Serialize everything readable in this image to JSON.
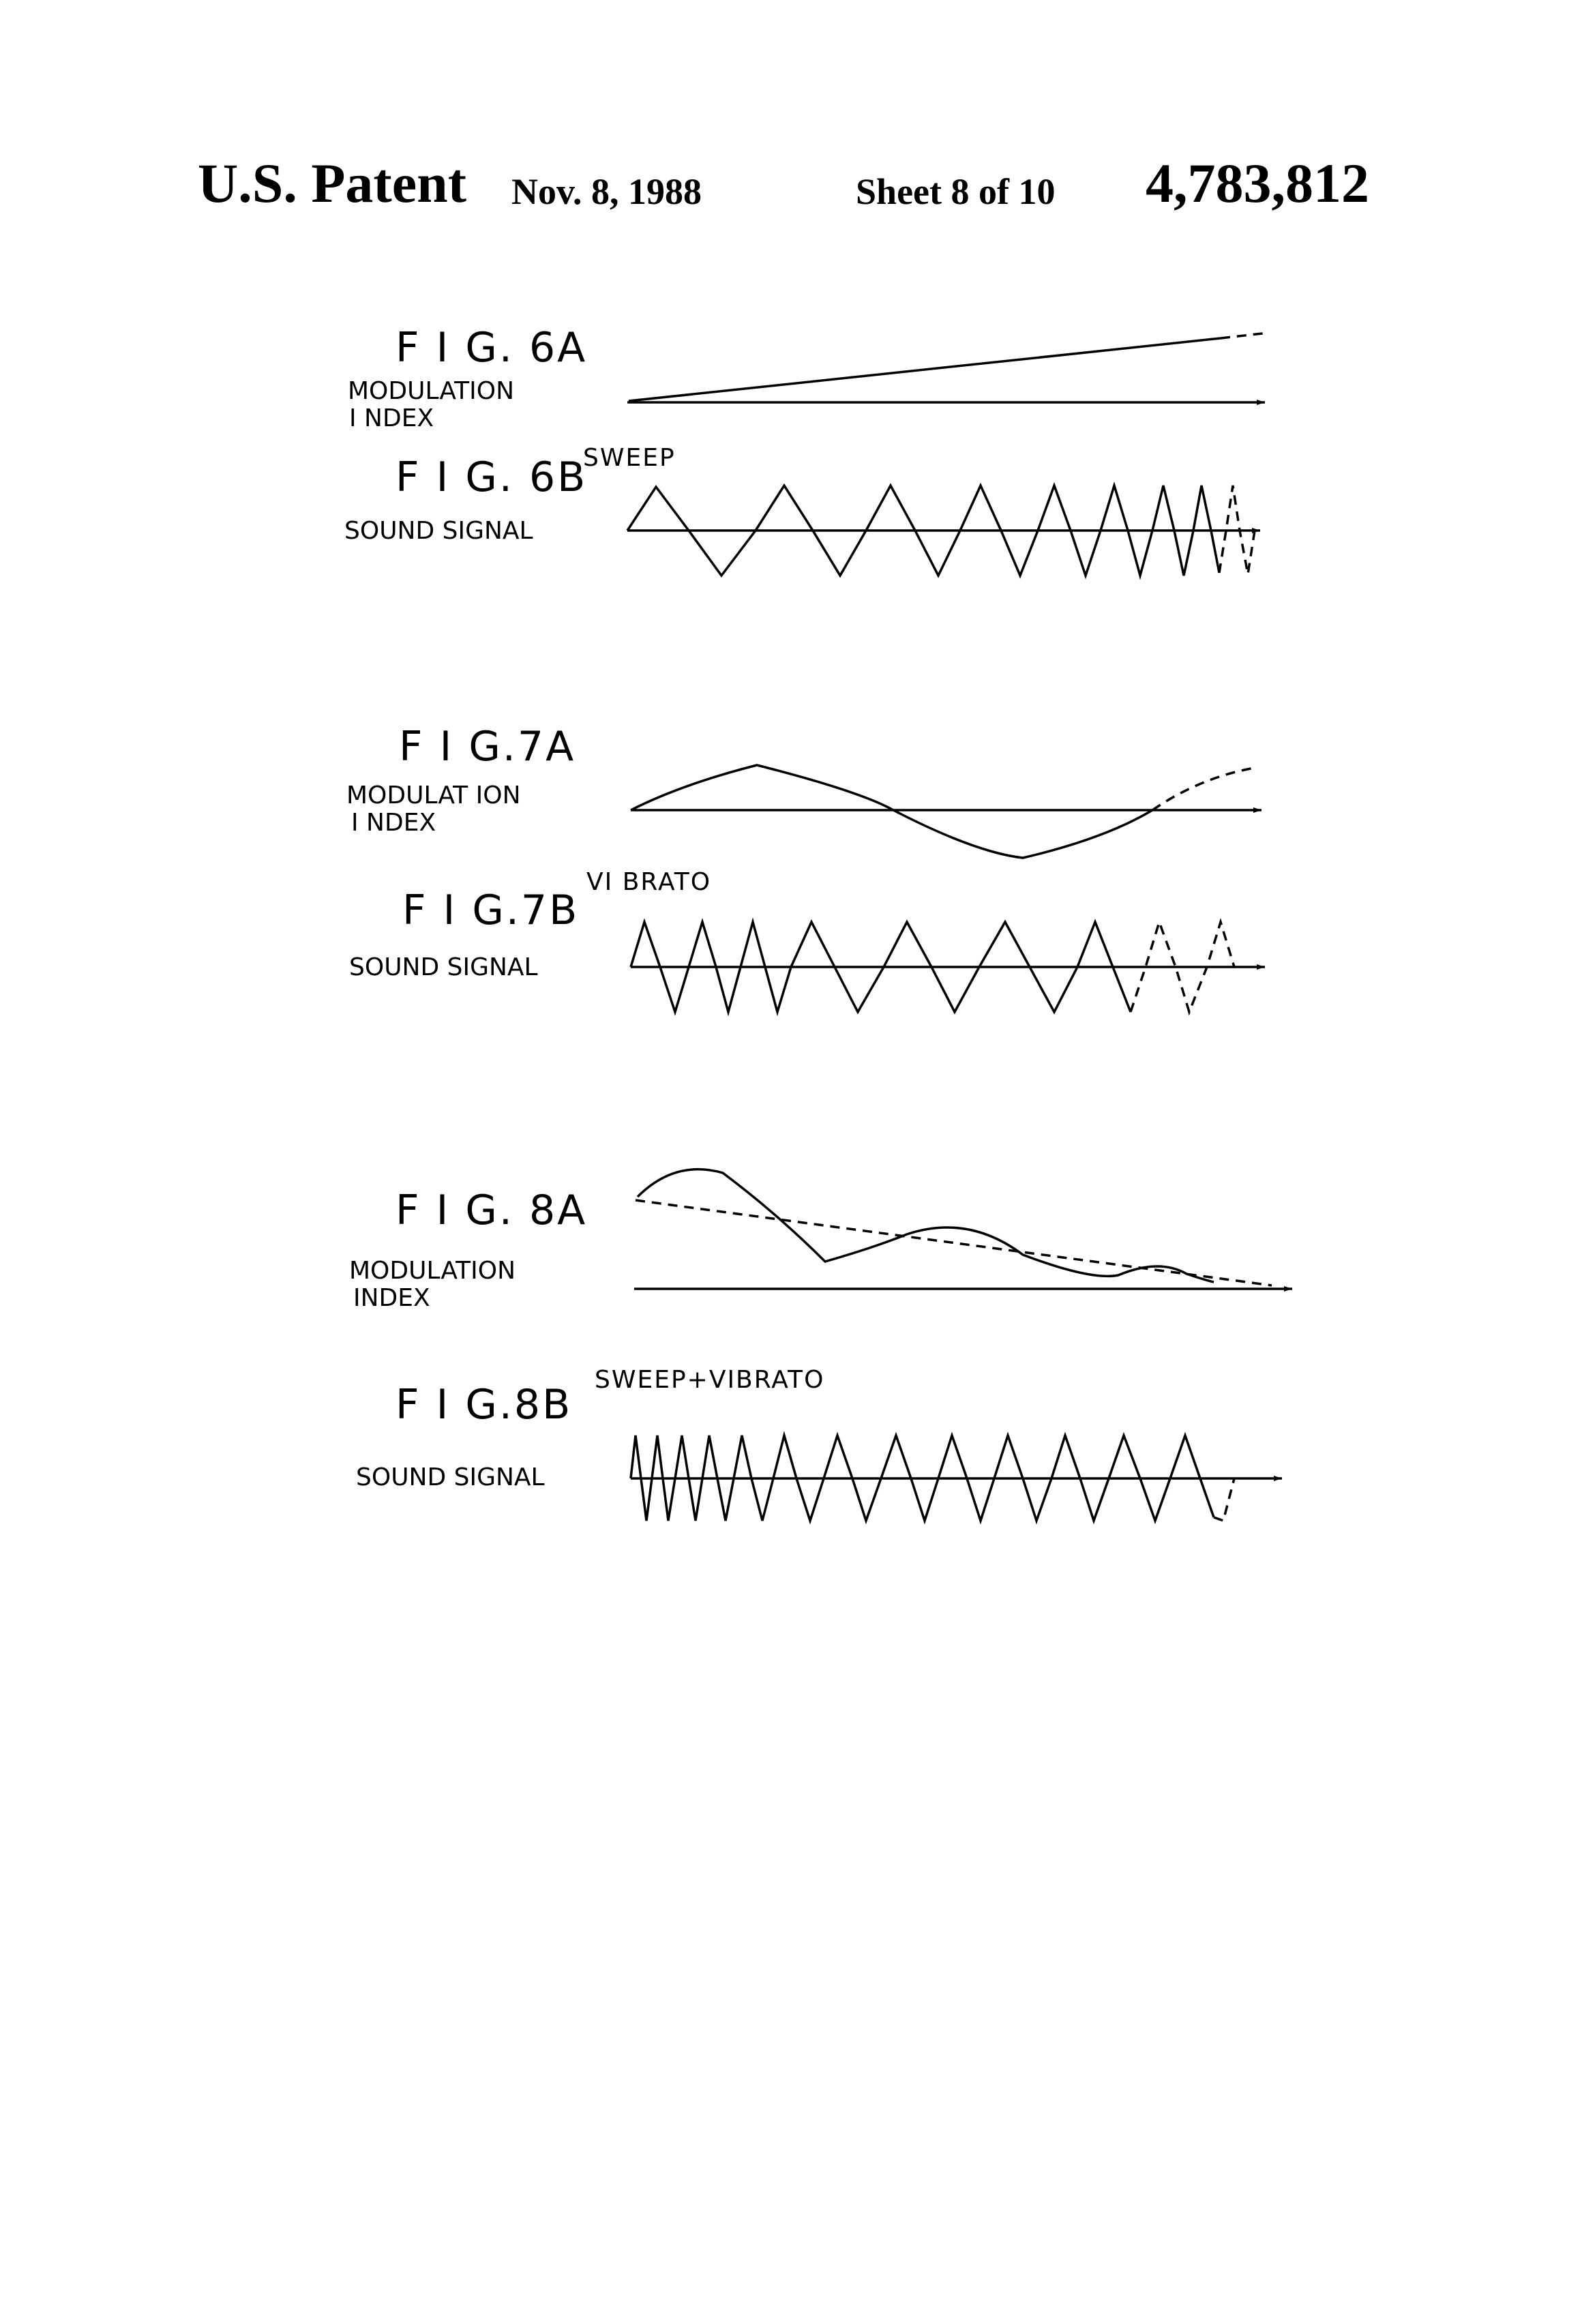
{
  "header": {
    "title": "U.S. Patent",
    "date": "Nov. 8, 1988",
    "sheet": "Sheet 8 of 10",
    "patent_number": "4,783,812"
  },
  "figures": {
    "fig6a": {
      "label": "F I G. 6A",
      "caption_line1": "MODULATION",
      "caption_line2": "I NDEX"
    },
    "fig6b": {
      "label": "F I G. 6B",
      "caption": "SOUND SIGNAL",
      "annotation": "SWEEP"
    },
    "fig7a": {
      "label": "F I G.7A",
      "caption_line1": "MODULAT ION",
      "caption_line2": "I NDEX"
    },
    "fig7b": {
      "label": "F I G.7B",
      "caption": "SOUND SIGNAL",
      "annotation": "VI BRATO"
    },
    "fig8a": {
      "label": "F I G. 8A",
      "caption_line1": "MODULATION",
      "caption_line2": "INDEX"
    },
    "fig8b": {
      "label": "F I G.8B",
      "caption": "SOUND SIGNAL",
      "annotation": "SWEEP+VIBRATO"
    }
  }
}
